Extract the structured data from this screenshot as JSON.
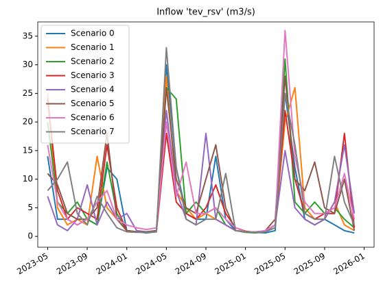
{
  "chart_data": {
    "type": "line",
    "title": "Inflow 'tev_rsv' (m3/s)",
    "x": [
      "2023-05",
      "2023-06",
      "2023-07",
      "2023-08",
      "2023-09",
      "2023-10",
      "2023-11",
      "2023-12",
      "2024-01",
      "2024-02",
      "2024-03",
      "2024-04",
      "2024-05",
      "2024-06",
      "2024-07",
      "2024-08",
      "2024-09",
      "2024-10",
      "2024-11",
      "2024-12",
      "2025-01",
      "2025-02",
      "2025-03",
      "2025-04",
      "2025-05",
      "2025-06",
      "2025-07",
      "2025-08",
      "2025-09",
      "2025-10",
      "2025-11",
      "2025-12"
    ],
    "series": [
      {
        "name": "Scenario 0",
        "color": "#1f77b4",
        "values": [
          14,
          3,
          3,
          2,
          3,
          2,
          12,
          10,
          1,
          0.8,
          0.6,
          0.8,
          30,
          12,
          4,
          3,
          3,
          14,
          3,
          1,
          0.8,
          0.7,
          0.6,
          1,
          25,
          12,
          3,
          2,
          3,
          2,
          1,
          0.6
        ]
      },
      {
        "name": "Scenario 1",
        "color": "#ff7f0e",
        "values": [
          25,
          5,
          2,
          3,
          2,
          14,
          5,
          3,
          1,
          0.8,
          0.7,
          1,
          28,
          8,
          5,
          3,
          4,
          3,
          2,
          1,
          0.8,
          0.7,
          1,
          2,
          20,
          26,
          5,
          3,
          3,
          6,
          2,
          1
        ]
      },
      {
        "name": "Scenario 2",
        "color": "#2ca02c",
        "values": [
          20,
          6,
          4,
          6,
          3,
          2,
          13,
          4,
          1,
          0.8,
          0.7,
          0.8,
          26,
          24,
          4,
          6,
          4,
          5,
          2,
          1,
          0.7,
          0.6,
          0.8,
          1.5,
          31,
          6,
          4,
          6,
          4,
          5,
          3,
          1.5
        ]
      },
      {
        "name": "Scenario 3",
        "color": "#d62728",
        "values": [
          24,
          8,
          3,
          5,
          4,
          3,
          16,
          5,
          1,
          0.8,
          0.8,
          0.9,
          18,
          6,
          4,
          3,
          5,
          9,
          4,
          1.5,
          0.9,
          0.7,
          0.9,
          2,
          22,
          10,
          4,
          3,
          4,
          4,
          18,
          1.5
        ]
      },
      {
        "name": "Scenario 4",
        "color": "#9467bd",
        "values": [
          7,
          2,
          1,
          3,
          9,
          2,
          6,
          3,
          4,
          1,
          0.8,
          1,
          22,
          8,
          3,
          2,
          18,
          3,
          2,
          1,
          0.8,
          0.7,
          0.8,
          2,
          15,
          5,
          3,
          2,
          3,
          6,
          16,
          4
        ]
      },
      {
        "name": "Scenario 5",
        "color": "#8c564b",
        "values": [
          11,
          9,
          4,
          3,
          3,
          5,
          18,
          3,
          1,
          0.8,
          0.8,
          1,
          26,
          10,
          5,
          4,
          10,
          16,
          5,
          1,
          0.8,
          0.7,
          1,
          3,
          28,
          10,
          8,
          13,
          5,
          4,
          10,
          1
        ]
      },
      {
        "name": "Scenario 6",
        "color": "#e377c2",
        "values": [
          16,
          6,
          3,
          2,
          3,
          6,
          8,
          3,
          2,
          1.5,
          1.2,
          1.5,
          20,
          7,
          13,
          4,
          4,
          5,
          3,
          1.5,
          0.8,
          0.8,
          1,
          2,
          36,
          14,
          6,
          4,
          4,
          5,
          11,
          3
        ]
      },
      {
        "name": "Scenario 7",
        "color": "#7f7f7f",
        "values": [
          8,
          10,
          13,
          4,
          2,
          7,
          4,
          1.5,
          0.8,
          0.7,
          0.7,
          0.8,
          33,
          12,
          3,
          2,
          3,
          3,
          11,
          1,
          0.8,
          0.7,
          0.8,
          1.5,
          25,
          16,
          4,
          3,
          3,
          14,
          6,
          2
        ]
      }
    ],
    "xlim": [
      "2023-04",
      "2026-02"
    ],
    "xticks": [
      "2023-05",
      "2023-09",
      "2024-01",
      "2024-05",
      "2024-09",
      "2025-01",
      "2025-05",
      "2025-09",
      "2026-01"
    ],
    "ylim": [
      -1.9,
      37.5
    ],
    "yticks": [
      0,
      5,
      10,
      15,
      20,
      25,
      30,
      35
    ],
    "legend": "upper-left"
  }
}
